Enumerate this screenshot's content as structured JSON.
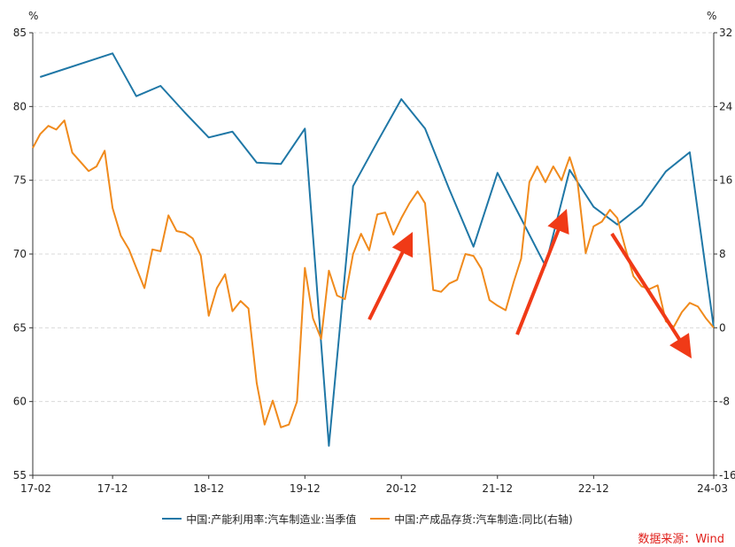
{
  "chart_data": {
    "type": "line",
    "left_axis": {
      "unit": "%",
      "ylim": [
        55,
        85
      ],
      "ticks": [
        55,
        60,
        65,
        70,
        75,
        80,
        85
      ]
    },
    "right_axis": {
      "unit": "%",
      "ylim": [
        -16,
        32
      ],
      "ticks": [
        -16,
        -8,
        0,
        8,
        16,
        24,
        32
      ]
    },
    "x_axis": {
      "ticks": [
        "17-02",
        "17-12",
        "18-12",
        "19-12",
        "20-12",
        "21-12",
        "22-12",
        "24-03"
      ]
    },
    "grid": "horizontal dashed",
    "legend_position": "bottom",
    "series": [
      {
        "name": "中国:产能利用率:汽车制造业:当季值",
        "axis": "left",
        "color": "#1f77a6",
        "x": [
          "2017-03",
          "2017-12",
          "2018-03",
          "2018-06",
          "2018-09",
          "2018-12",
          "2019-03",
          "2019-06",
          "2019-09",
          "2019-12",
          "2020-03",
          "2020-06",
          "2020-09",
          "2020-12",
          "2021-03",
          "2021-06",
          "2021-09",
          "2021-12",
          "2022-03",
          "2022-06",
          "2022-09",
          "2022-12",
          "2023-03",
          "2023-06",
          "2023-09",
          "2023-12",
          "2024-03"
        ],
        "values": [
          82.0,
          83.6,
          80.7,
          81.4,
          79.6,
          77.9,
          78.3,
          76.2,
          76.1,
          78.5,
          57.0,
          74.6,
          77.6,
          80.5,
          78.5,
          74.4,
          70.5,
          75.5,
          72.4,
          69.2,
          75.7,
          73.2,
          72.0,
          73.3,
          75.6,
          76.9,
          65.0
        ]
      },
      {
        "name": "中国:产成品存货:汽车制造:同比(右轴)",
        "axis": "right",
        "color": "#f08a1c",
        "x": [
          "2017-02",
          "2017-03",
          "2017-04",
          "2017-05",
          "2017-06",
          "2017-07",
          "2017-08",
          "2017-09",
          "2017-10",
          "2017-11",
          "2017-12",
          "2018-01",
          "2018-02",
          "2018-03",
          "2018-04",
          "2018-05",
          "2018-06",
          "2018-07",
          "2018-08",
          "2018-09",
          "2018-10",
          "2018-11",
          "2018-12",
          "2019-01",
          "2019-02",
          "2019-03",
          "2019-04",
          "2019-05",
          "2019-06",
          "2019-07",
          "2019-08",
          "2019-09",
          "2019-10",
          "2019-11",
          "2019-12",
          "2020-01",
          "2020-02",
          "2020-03",
          "2020-04",
          "2020-05",
          "2020-06",
          "2020-07",
          "2020-08",
          "2020-09",
          "2020-10",
          "2020-11",
          "2020-12",
          "2021-01",
          "2021-02",
          "2021-03",
          "2021-04",
          "2021-05",
          "2021-06",
          "2021-07",
          "2021-08",
          "2021-09",
          "2021-10",
          "2021-11",
          "2021-12",
          "2022-01",
          "2022-02",
          "2022-03",
          "2022-04",
          "2022-05",
          "2022-06",
          "2022-07",
          "2022-08",
          "2022-09",
          "2022-10",
          "2022-11",
          "2022-12",
          "2023-01",
          "2023-02",
          "2023-03",
          "2023-04",
          "2023-05",
          "2023-06",
          "2023-07",
          "2023-08",
          "2023-09",
          "2023-10",
          "2023-11",
          "2023-12",
          "2024-01",
          "2024-02",
          "2024-03"
        ],
        "values": [
          19.5,
          21.0,
          21.9,
          21.5,
          22.5,
          19.0,
          18.0,
          17.0,
          17.5,
          19.2,
          13.0,
          10.0,
          8.5,
          6.5,
          4.3,
          8.5,
          8.3,
          12.2,
          10.5,
          10.3,
          9.7,
          7.8,
          1.3,
          4.3,
          5.8,
          1.8,
          2.9,
          2.1,
          -6.0,
          -10.5,
          -7.9,
          -10.8,
          -10.5,
          -8.0,
          6.5,
          1.0,
          -1.2,
          6.2,
          3.5,
          3.1,
          8.0,
          10.2,
          8.4,
          12.3,
          12.5,
          10.1,
          11.9,
          13.5,
          14.8,
          13.5,
          4.1,
          3.9,
          4.8,
          5.2,
          8.0,
          7.8,
          6.4,
          3.0,
          2.4,
          1.9,
          5.0,
          7.5,
          15.8,
          17.5,
          15.8,
          17.5,
          16.0,
          18.5,
          15.8,
          8.1,
          11.0,
          11.5,
          12.8,
          11.9,
          8.6,
          5.6,
          4.5,
          4.2,
          4.6,
          0.7,
          0.1,
          1.7,
          2.7,
          2.3,
          1.0,
          0.0
        ]
      }
    ],
    "annotations": [
      "red arrow up (2020)",
      "red arrow up (2022)",
      "red arrow down (2023)"
    ],
    "source": "数据来源：Wind"
  }
}
